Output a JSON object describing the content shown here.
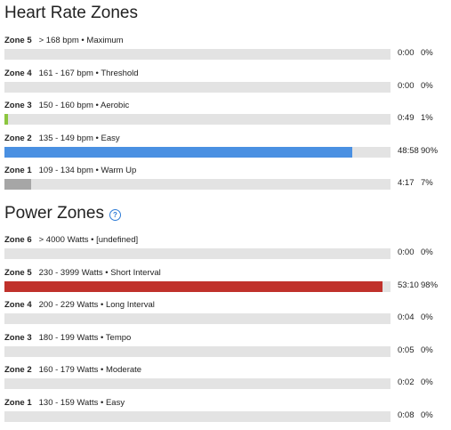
{
  "heart_rate": {
    "title": "Heart Rate Zones",
    "zones": [
      {
        "name": "Zone 5",
        "range": "> 168 bpm",
        "label": "Maximum",
        "time": "0:00",
        "percent": "0%",
        "fill_pct": 0,
        "color": "#e3e3e3"
      },
      {
        "name": "Zone 4",
        "range": "161 - 167 bpm",
        "label": "Threshold",
        "time": "0:00",
        "percent": "0%",
        "fill_pct": 0,
        "color": "#e3e3e3"
      },
      {
        "name": "Zone 3",
        "range": "150 - 160 bpm",
        "label": "Aerobic",
        "time": "0:49",
        "percent": "1%",
        "fill_pct": 1,
        "color": "#8cc63f"
      },
      {
        "name": "Zone 2",
        "range": "135 - 149 bpm",
        "label": "Easy",
        "time": "48:58",
        "percent": "90%",
        "fill_pct": 90,
        "color": "#4a90e2"
      },
      {
        "name": "Zone 1",
        "range": "109 - 134 bpm",
        "label": "Warm Up",
        "time": "4:17",
        "percent": "7%",
        "fill_pct": 7,
        "color": "#a6a6a6"
      }
    ]
  },
  "power": {
    "title": "Power Zones",
    "help_icon": "help-circle-icon",
    "zones": [
      {
        "name": "Zone 6",
        "range": "> 4000 Watts",
        "label": "[undefined]",
        "time": "0:00",
        "percent": "0%",
        "fill_pct": 0,
        "color": "#e3e3e3"
      },
      {
        "name": "Zone 5",
        "range": "230 - 3999 Watts",
        "label": "Short Interval",
        "time": "53:10",
        "percent": "98%",
        "fill_pct": 98,
        "color": "#c0312b"
      },
      {
        "name": "Zone 4",
        "range": "200 - 229 Watts",
        "label": "Long Interval",
        "time": "0:04",
        "percent": "0%",
        "fill_pct": 0,
        "color": "#e3e3e3"
      },
      {
        "name": "Zone 3",
        "range": "180 - 199 Watts",
        "label": "Tempo",
        "time": "0:05",
        "percent": "0%",
        "fill_pct": 0,
        "color": "#e3e3e3"
      },
      {
        "name": "Zone 2",
        "range": "160 - 179 Watts",
        "label": "Moderate",
        "time": "0:02",
        "percent": "0%",
        "fill_pct": 0,
        "color": "#e3e3e3"
      },
      {
        "name": "Zone 1",
        "range": "130 - 159 Watts",
        "label": "Easy",
        "time": "0:08",
        "percent": "0%",
        "fill_pct": 0,
        "color": "#e3e3e3"
      }
    ]
  }
}
